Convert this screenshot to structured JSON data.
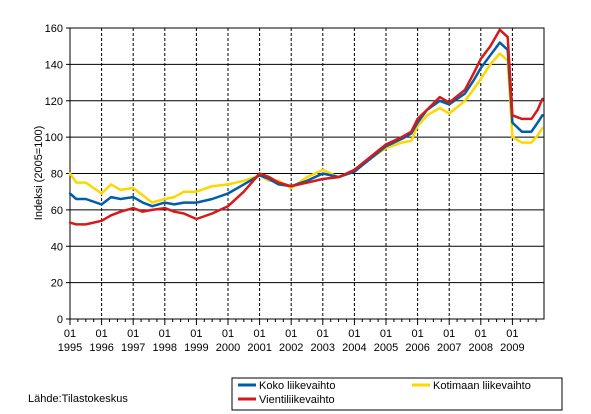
{
  "chart_data": {
    "type": "line",
    "ylabel": "Indeksi (2005=100)",
    "ylim": [
      0,
      160
    ],
    "y_ticks": [
      "0",
      "20",
      "40",
      "60",
      "80",
      "100",
      "120",
      "140",
      "160"
    ],
    "x_range": [
      1995,
      2010
    ],
    "x_month_labels": [
      "01",
      "01",
      "01",
      "01",
      "01",
      "01",
      "01",
      "01",
      "01",
      "01",
      "01",
      "01",
      "01",
      "01",
      "01"
    ],
    "x_year_labels": [
      "1995",
      "1996",
      "1997",
      "1998",
      "1999",
      "2000",
      "2001",
      "2002",
      "2003",
      "2004",
      "2005",
      "2006",
      "2007",
      "2008",
      "2009"
    ],
    "grid": true,
    "legend_position": "bottom-right",
    "source": "Lähde:Tilastokeskus",
    "series": [
      {
        "name": "Koko liikevaihto",
        "color": "#005ea8",
        "points": [
          [
            1995.0,
            69
          ],
          [
            1995.2,
            66
          ],
          [
            1995.5,
            66
          ],
          [
            1996.0,
            63
          ],
          [
            1996.3,
            67
          ],
          [
            1996.6,
            66
          ],
          [
            1997.0,
            67
          ],
          [
            1997.3,
            64
          ],
          [
            1997.6,
            62
          ],
          [
            1998.0,
            64
          ],
          [
            1998.3,
            63
          ],
          [
            1998.6,
            64
          ],
          [
            1999.0,
            64
          ],
          [
            1999.5,
            66
          ],
          [
            2000.0,
            69
          ],
          [
            2000.5,
            74
          ],
          [
            2001.0,
            79
          ],
          [
            2001.3,
            77
          ],
          [
            2001.6,
            74
          ],
          [
            2002.0,
            73
          ],
          [
            2002.5,
            76
          ],
          [
            2003.0,
            80
          ],
          [
            2003.5,
            78
          ],
          [
            2004.0,
            81
          ],
          [
            2004.5,
            88
          ],
          [
            2005.0,
            95
          ],
          [
            2005.5,
            99
          ],
          [
            2005.8,
            102
          ],
          [
            2006.0,
            108
          ],
          [
            2006.3,
            115
          ],
          [
            2006.7,
            120
          ],
          [
            2007.0,
            118
          ],
          [
            2007.5,
            124
          ],
          [
            2007.8,
            132
          ],
          [
            2008.0,
            138
          ],
          [
            2008.3,
            145
          ],
          [
            2008.6,
            152
          ],
          [
            2008.85,
            148
          ],
          [
            2009.0,
            108
          ],
          [
            2009.3,
            103
          ],
          [
            2009.6,
            103
          ],
          [
            2009.8,
            108
          ],
          [
            2009.95,
            112
          ]
        ]
      },
      {
        "name": "Kotimaan liikevaihto",
        "color": "#ffd700",
        "points": [
          [
            1995.0,
            80
          ],
          [
            1995.2,
            75
          ],
          [
            1995.5,
            75
          ],
          [
            1996.0,
            69
          ],
          [
            1996.3,
            74
          ],
          [
            1996.6,
            71
          ],
          [
            1997.0,
            72
          ],
          [
            1997.3,
            68
          ],
          [
            1997.6,
            64
          ],
          [
            1998.0,
            66
          ],
          [
            1998.3,
            67
          ],
          [
            1998.6,
            70
          ],
          [
            1999.0,
            70
          ],
          [
            1999.5,
            73
          ],
          [
            2000.0,
            74
          ],
          [
            2000.5,
            76
          ],
          [
            2001.0,
            79
          ],
          [
            2001.3,
            76
          ],
          [
            2001.6,
            76
          ],
          [
            2002.0,
            72
          ],
          [
            2002.5,
            78
          ],
          [
            2003.0,
            82
          ],
          [
            2003.5,
            78
          ],
          [
            2004.0,
            82
          ],
          [
            2004.5,
            88
          ],
          [
            2005.0,
            94
          ],
          [
            2005.5,
            97
          ],
          [
            2005.8,
            98
          ],
          [
            2006.0,
            106
          ],
          [
            2006.3,
            112
          ],
          [
            2006.7,
            116
          ],
          [
            2007.0,
            113
          ],
          [
            2007.5,
            120
          ],
          [
            2007.8,
            127
          ],
          [
            2008.0,
            132
          ],
          [
            2008.3,
            140
          ],
          [
            2008.6,
            146
          ],
          [
            2008.85,
            142
          ],
          [
            2009.0,
            100
          ],
          [
            2009.3,
            97
          ],
          [
            2009.6,
            97
          ],
          [
            2009.8,
            101
          ],
          [
            2009.95,
            105
          ]
        ]
      },
      {
        "name": "Vientiliikevaihto",
        "color": "#d7191c",
        "points": [
          [
            1995.0,
            53
          ],
          [
            1995.2,
            52
          ],
          [
            1995.5,
            52
          ],
          [
            1996.0,
            54
          ],
          [
            1996.3,
            57
          ],
          [
            1996.6,
            59
          ],
          [
            1997.0,
            61
          ],
          [
            1997.3,
            59
          ],
          [
            1997.6,
            60
          ],
          [
            1998.0,
            61
          ],
          [
            1998.3,
            59
          ],
          [
            1998.6,
            58
          ],
          [
            1999.0,
            55
          ],
          [
            1999.5,
            58
          ],
          [
            2000.0,
            62
          ],
          [
            2000.5,
            70
          ],
          [
            2001.0,
            80
          ],
          [
            2001.3,
            78
          ],
          [
            2001.6,
            75
          ],
          [
            2002.0,
            73
          ],
          [
            2002.5,
            75
          ],
          [
            2003.0,
            77
          ],
          [
            2003.5,
            78
          ],
          [
            2004.0,
            82
          ],
          [
            2004.5,
            89
          ],
          [
            2005.0,
            96
          ],
          [
            2005.5,
            100
          ],
          [
            2005.8,
            103
          ],
          [
            2006.0,
            110
          ],
          [
            2006.3,
            115
          ],
          [
            2006.7,
            122
          ],
          [
            2007.0,
            119
          ],
          [
            2007.5,
            126
          ],
          [
            2007.8,
            136
          ],
          [
            2008.0,
            143
          ],
          [
            2008.3,
            150
          ],
          [
            2008.6,
            159
          ],
          [
            2008.85,
            155
          ],
          [
            2009.0,
            112
          ],
          [
            2009.3,
            110
          ],
          [
            2009.6,
            110
          ],
          [
            2009.8,
            115
          ],
          [
            2009.95,
            121
          ]
        ]
      }
    ]
  }
}
